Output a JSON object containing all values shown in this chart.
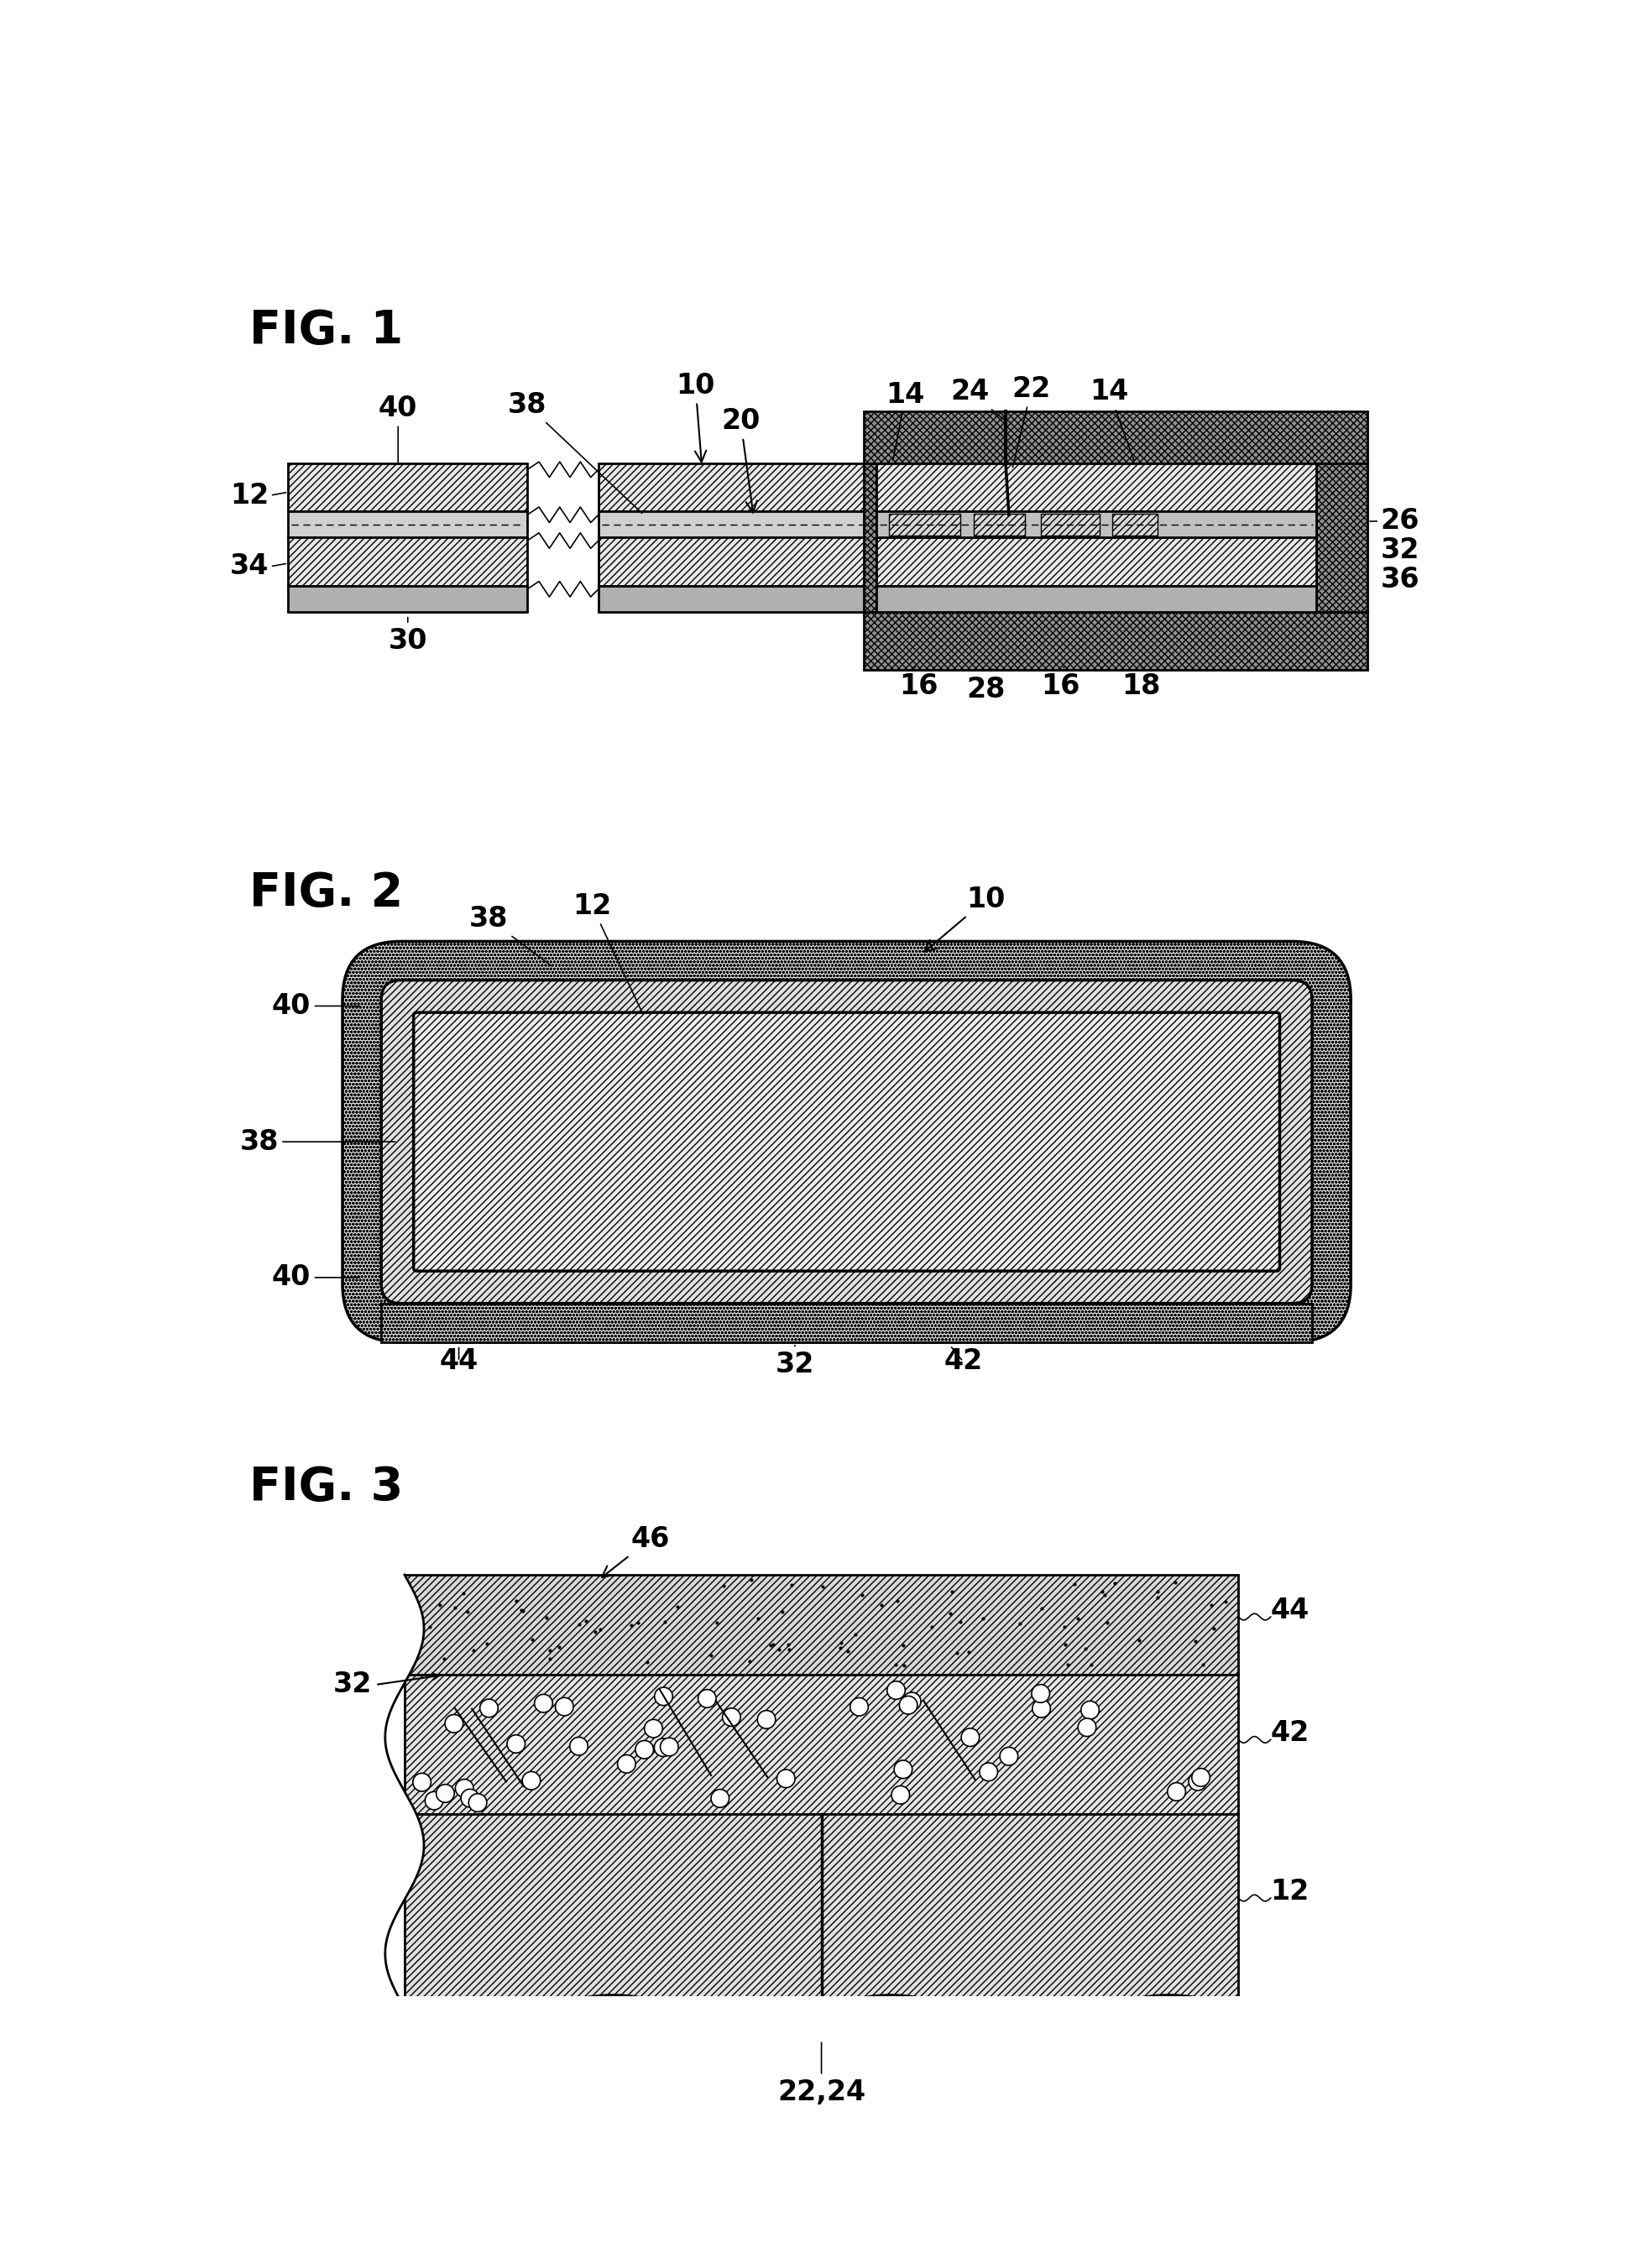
{
  "bg_color": "#ffffff",
  "fig1_title": "FIG. 1",
  "fig2_title": "FIG. 2",
  "fig3_title": "FIG. 3",
  "line_color": "#000000",
  "hatch_diag": "////",
  "hatch_cross": "xxxx",
  "hatch_dot": "oooo",
  "fc_light": "#e8e8e8",
  "fc_medium": "#c8c8c8",
  "fc_dark": "#808080",
  "fc_white": "#ffffff"
}
